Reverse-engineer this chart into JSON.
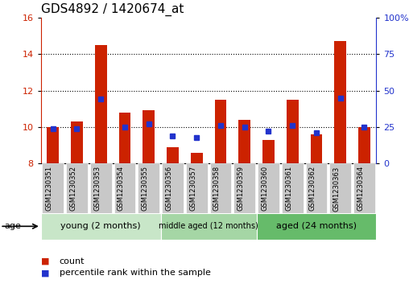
{
  "title": "GDS4892 / 1420674_at",
  "samples": [
    "GSM1230351",
    "GSM1230352",
    "GSM1230353",
    "GSM1230354",
    "GSM1230355",
    "GSM1230356",
    "GSM1230357",
    "GSM1230358",
    "GSM1230359",
    "GSM1230360",
    "GSM1230361",
    "GSM1230362",
    "GSM1230363",
    "GSM1230364"
  ],
  "count_values": [
    10.0,
    10.3,
    14.5,
    10.8,
    10.9,
    8.9,
    8.6,
    11.5,
    10.4,
    9.3,
    11.5,
    9.6,
    14.7,
    10.0
  ],
  "percentile_values": [
    24,
    24,
    44,
    25,
    27,
    19,
    18,
    26,
    25,
    22,
    26,
    21,
    45,
    25
  ],
  "ylim_left": [
    8,
    16
  ],
  "ylim_right": [
    0,
    100
  ],
  "yticks_left": [
    8,
    10,
    12,
    14,
    16
  ],
  "yticks_right": [
    0,
    25,
    50,
    75,
    100
  ],
  "count_color": "#cc2200",
  "percentile_color": "#2233cc",
  "bar_bottom": 8,
  "group_labels": [
    "young (2 months)",
    "middle aged (12 months)",
    "aged (24 months)"
  ],
  "group_ranges": [
    [
      0,
      5
    ],
    [
      5,
      9
    ],
    [
      9,
      14
    ]
  ],
  "group_colors": [
    "#c8e6c8",
    "#a5d6a5",
    "#66bb6a"
  ],
  "tick_label_bg": "#c8c8c8",
  "legend_count": "count",
  "legend_percentile": "percentile rank within the sample",
  "age_label": "age",
  "title_fontsize": 11,
  "axis_fontsize": 8,
  "label_fontsize": 8
}
